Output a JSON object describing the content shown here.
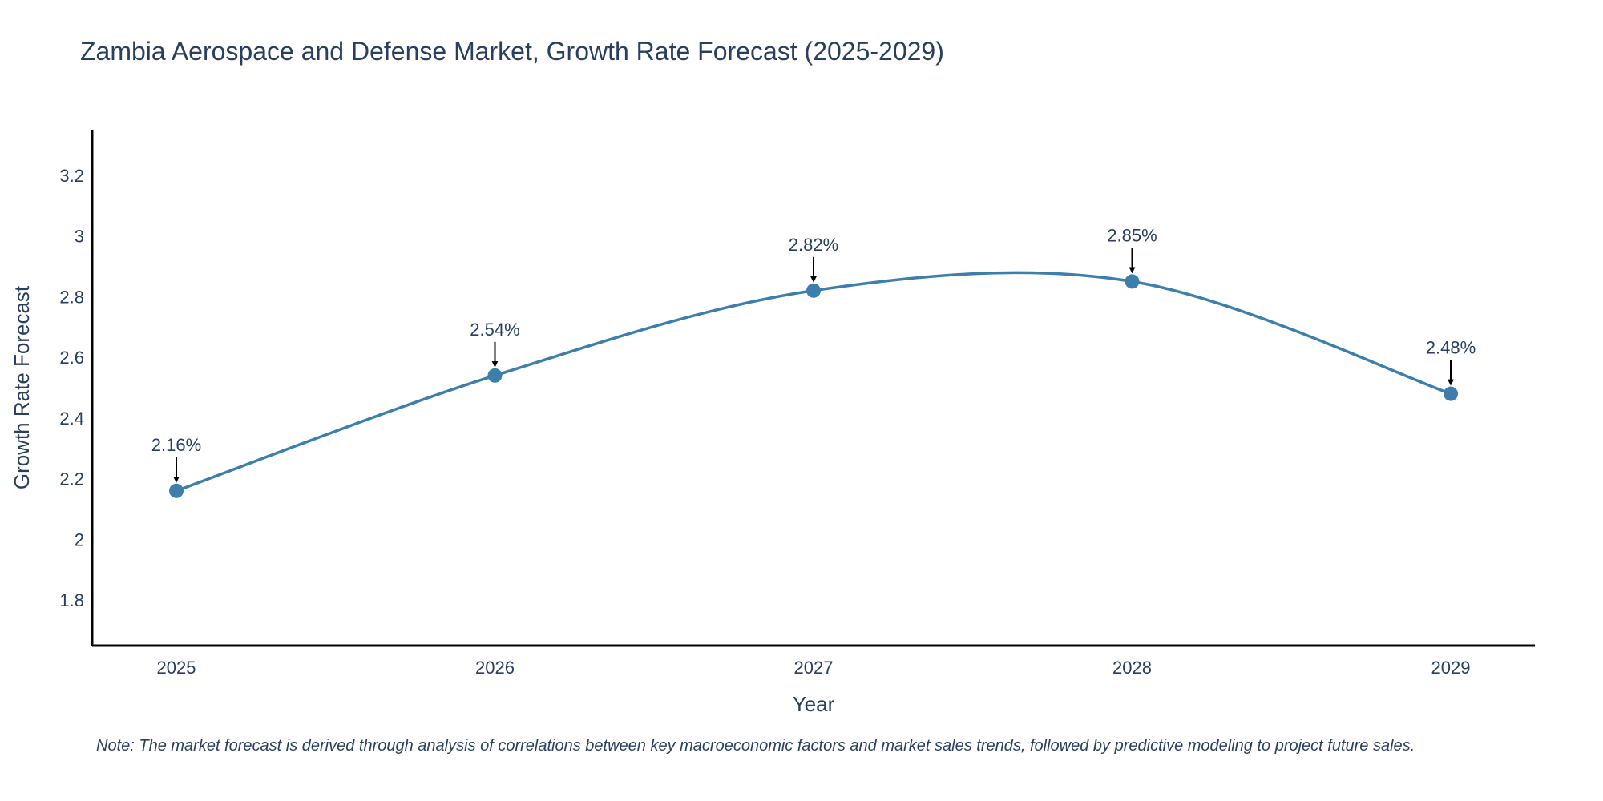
{
  "chart_data": {
    "type": "line",
    "title": "Zambia Aerospace and Defense Market, Growth Rate Forecast (2025-2029)",
    "xlabel": "Year",
    "ylabel": "Growth Rate Forecast",
    "categories": [
      "2025",
      "2026",
      "2027",
      "2028",
      "2029"
    ],
    "values": [
      2.16,
      2.54,
      2.82,
      2.85,
      2.48
    ],
    "data_labels": [
      "2.16%",
      "2.54%",
      "2.82%",
      "2.85%",
      "2.48%"
    ],
    "yticks": [
      1.8,
      2,
      2.2,
      2.4,
      2.6,
      2.8,
      3,
      3.2
    ],
    "ytick_labels": [
      "1.8",
      "2",
      "2.2",
      "2.4",
      "2.6",
      "2.8",
      "3",
      "3.2"
    ],
    "ylim": [
      1.65,
      3.35
    ],
    "line_shape": "spline",
    "grid": false,
    "line_color": "#3d7eab",
    "axis_color": "#000000",
    "text_color": "#2a3f5f"
  },
  "note": "Note: The market forecast is derived through analysis of correlations between key macroeconomic factors and market sales trends, followed by predictive modeling to project future sales."
}
